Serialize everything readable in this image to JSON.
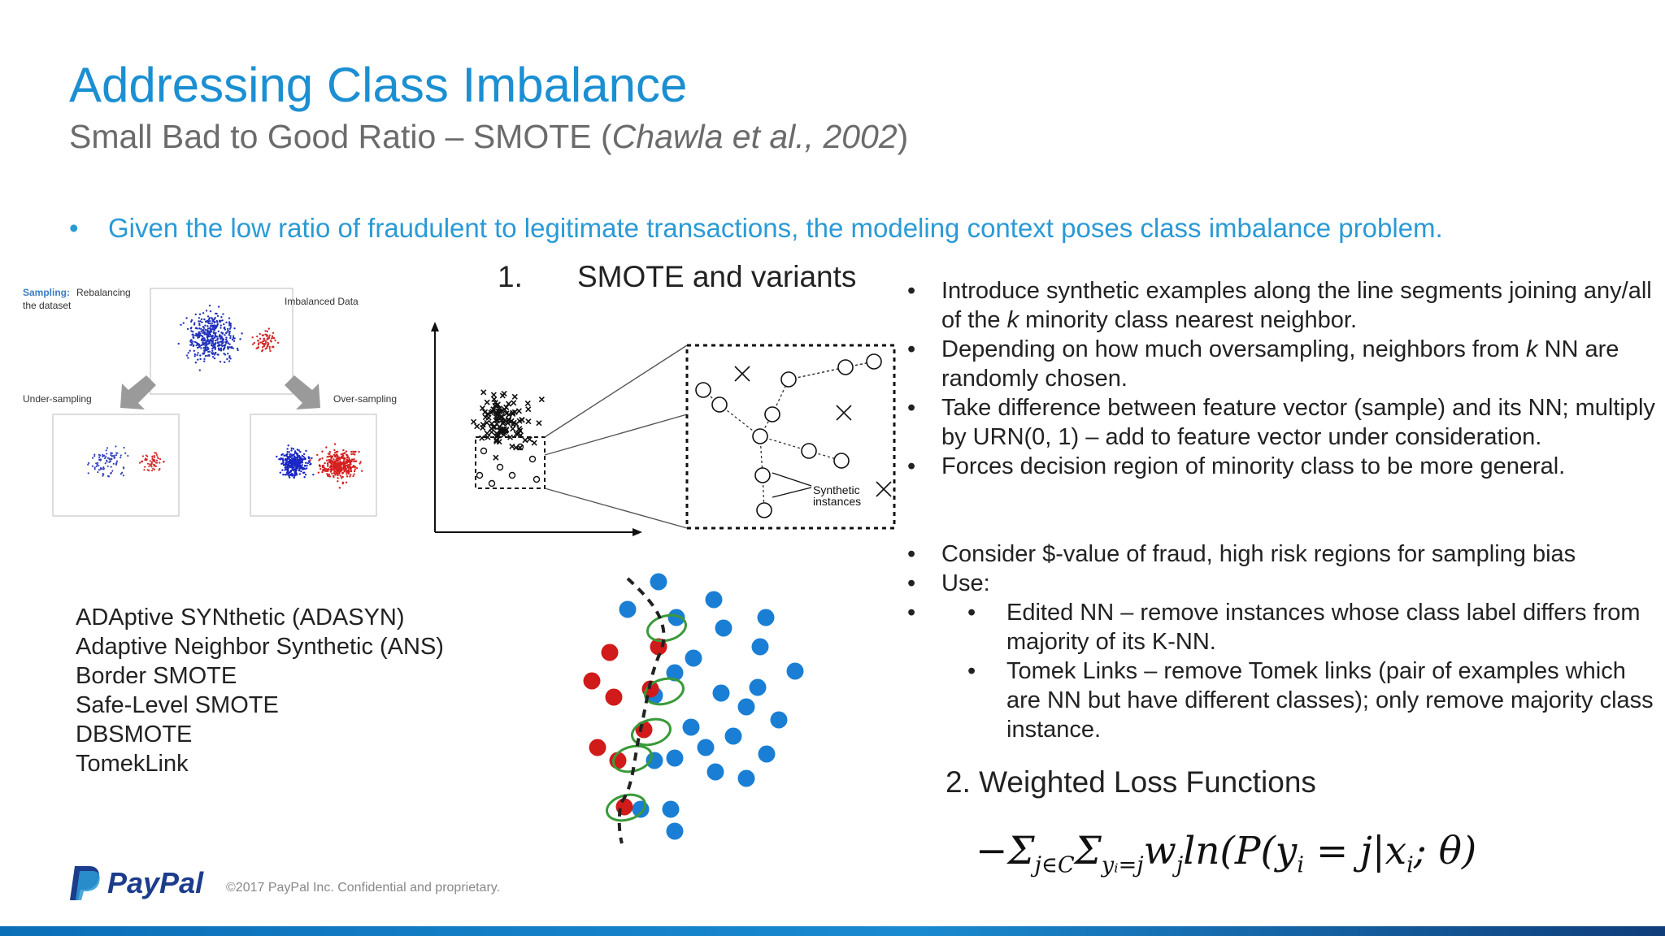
{
  "title": "Addressing Class Imbalance",
  "subtitle": {
    "prefix": "Small Bad to Good Ratio – SMOTE (",
    "citation": "Chawla et al., 2002",
    "suffix": ")"
  },
  "lead_bullet": "Given the low ratio of fraudulent to legitimate transactions, the modeling context poses class imbalance problem.",
  "smote_heading": {
    "number": "1.",
    "label": "SMOTE and variants"
  },
  "sampling_figure": {
    "label_sampling": "Sampling:",
    "label_rebalancing": "Rebalancing",
    "label_dataset": "the dataset",
    "label_imbalanced": "Imbalanced Data",
    "label_under": "Under-sampling",
    "label_over": "Over-sampling"
  },
  "smote_figure": {
    "label_line1": "Synthetic",
    "label_line2": "instances"
  },
  "bullets_a": [
    "Introduce synthetic examples along the line segments joining any/all of the k minority class nearest neighbor.",
    "Depending on how much oversampling, neighbors from k NN are randomly chosen.",
    "Take difference between feature vector (sample) and its NN; multiply by URN(0, 1) – add to feature vector under consideration.",
    "Forces decision region of minority class to be more general."
  ],
  "bullets_b": [
    "Consider $-value of fraud, high risk regions for sampling bias",
    "Use:"
  ],
  "bullets_b_sub": [
    "Edited NN – remove instances whose class label differs from majority of its K-NN.",
    "Tomek Links – remove Tomek links (pair of examples which are NN but have different classes); only remove majority class instance."
  ],
  "variants": [
    "ADAptive SYNthetic (ADASYN)",
    "Adaptive Neighbor Synthetic (ANS)",
    "Border SMOTE",
    "Safe-Level SMOTE",
    "DBSMOTE",
    "TomekLink"
  ],
  "weighted_loss_heading": "2. Weighted Loss Functions",
  "formula": {
    "lead": "−Σ",
    "sub1": "j∈C",
    "sigma2": "Σ",
    "sub2": "yᵢ=j",
    "w": "w",
    "sub3": "j",
    "body": "ln(P(y",
    "sub4": "i",
    "mid": " = j|x",
    "sub5": "i",
    "tail": "; θ)"
  },
  "logo": "PayPal",
  "copyright": "©2017 PayPal Inc. Confidential and proprietary.",
  "colors": {
    "title": "#1b8fd2",
    "lead": "#2a9ad6",
    "majority_dot": "#1a7fd4",
    "minority_dot": "#d11a1a",
    "tomek_ring": "#3a9a3a",
    "logo": "#1c3c8c"
  },
  "icons": [
    "paypal-logo-icon"
  ]
}
